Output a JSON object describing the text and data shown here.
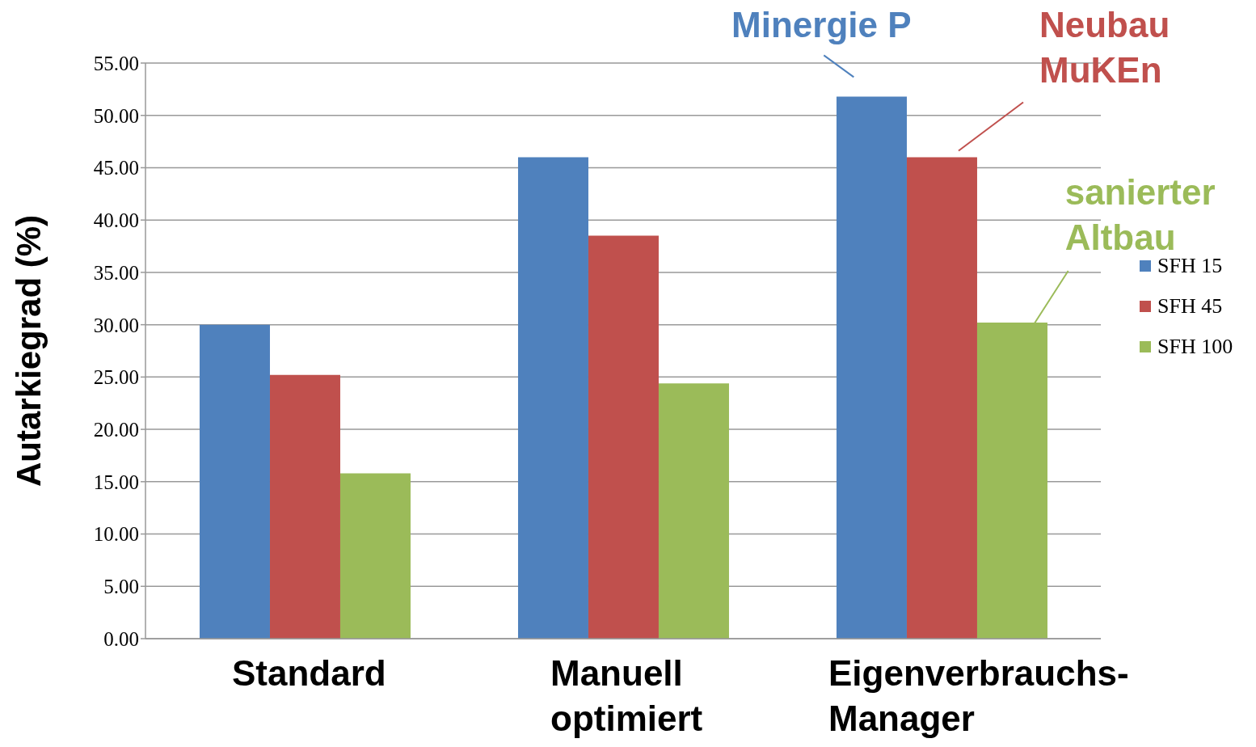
{
  "chart_data": {
    "type": "bar",
    "categories": [
      "Standard",
      "Manuell optimiert",
      "Eigenverbrauchs-Manager"
    ],
    "series": [
      {
        "name": "SFH 15",
        "color": "#4f81bd",
        "values": [
          30.0,
          46.0,
          51.8
        ]
      },
      {
        "name": "SFH 45",
        "color": "#c0504d",
        "values": [
          25.2,
          38.5,
          46.0
        ]
      },
      {
        "name": "SFH 100",
        "color": "#9bbb59",
        "values": [
          15.8,
          24.4,
          30.2
        ]
      }
    ],
    "ylabel": "Autarkiegrad (%)",
    "ylim": [
      0,
      55
    ],
    "yticks": [
      {
        "value": 0,
        "label": "0.00"
      },
      {
        "value": 5,
        "label": "5.00"
      },
      {
        "value": 10,
        "label": "10.00"
      },
      {
        "value": 15,
        "label": "15.00"
      },
      {
        "value": 20,
        "label": "20.00"
      },
      {
        "value": 25,
        "label": "25.00"
      },
      {
        "value": 30,
        "label": "30.00"
      },
      {
        "value": 35,
        "label": "35.00"
      },
      {
        "value": 40,
        "label": "40.00"
      },
      {
        "value": 45,
        "label": "45.00"
      },
      {
        "value": 50,
        "label": "50.00"
      },
      {
        "value": 55,
        "label": "55.00"
      }
    ],
    "annotations": [
      "Minergie P",
      "Neubau MuKEn",
      "sanierter Altbau"
    ],
    "grid": "y",
    "legend": "right"
  }
}
